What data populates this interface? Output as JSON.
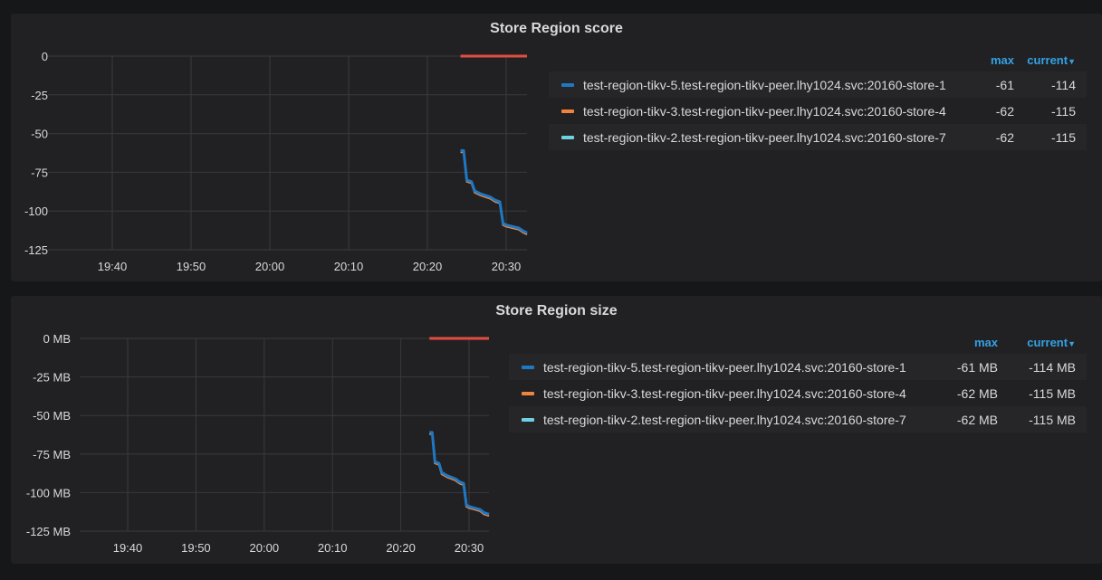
{
  "panels": [
    {
      "title": "Store Region score",
      "legend": {
        "columns": {
          "max": "max",
          "current": "current"
        },
        "sort_icon": "caret-down-icon",
        "items": [
          {
            "name": "test-region-tikv-5.test-region-tikv-peer.lhy1024.svc:20160-store-1",
            "color": "#1f78c1",
            "max": "-61",
            "current": "-114"
          },
          {
            "name": "test-region-tikv-3.test-region-tikv-peer.lhy1024.svc:20160-store-4",
            "color": "#ef843c",
            "max": "-62",
            "current": "-115"
          },
          {
            "name": "test-region-tikv-2.test-region-tikv-peer.lhy1024.svc:20160-store-7",
            "color": "#6ed0e0",
            "max": "-62",
            "current": "-115"
          }
        ]
      }
    },
    {
      "title": "Store Region size",
      "legend": {
        "columns": {
          "max": "max",
          "current": "current"
        },
        "sort_icon": "caret-down-icon",
        "items": [
          {
            "name": "test-region-tikv-5.test-region-tikv-peer.lhy1024.svc:20160-store-1",
            "color": "#1f78c1",
            "max": "-61 MB",
            "current": "-114 MB"
          },
          {
            "name": "test-region-tikv-3.test-region-tikv-peer.lhy1024.svc:20160-store-4",
            "color": "#ef843c",
            "max": "-62 MB",
            "current": "-115 MB"
          },
          {
            "name": "test-region-tikv-2.test-region-tikv-peer.lhy1024.svc:20160-store-7",
            "color": "#6ed0e0",
            "max": "-62 MB",
            "current": "-115 MB"
          }
        ]
      }
    }
  ],
  "chart_data": [
    {
      "type": "line",
      "title": "Store Region score",
      "xlabel": "",
      "ylabel": "",
      "x_ticks": [
        "19:40",
        "19:50",
        "20:00",
        "20:10",
        "20:20",
        "20:30"
      ],
      "y_ticks": [
        "0",
        "-25",
        "-50",
        "-75",
        "-100",
        "-125"
      ],
      "ylim": [
        -125,
        0
      ],
      "xlim_minutes": [
        -6.8,
        33
      ],
      "grid": true,
      "legend_position": "right",
      "threshold": {
        "value": 0,
        "from_minute": 24.2,
        "to_minute": 33,
        "color": "#e24d42"
      },
      "x_minutes": [
        24.2,
        24.6,
        25.0,
        25.6,
        26.0,
        26.8,
        27.4,
        28.0,
        28.6,
        29.2,
        29.6,
        30.0,
        30.8,
        31.6,
        32.2,
        33.0
      ],
      "series": [
        {
          "name": "test-region-tikv-5.test-region-tikv-peer.lhy1024.svc:20160-store-1",
          "color": "#1f78c1",
          "values": [
            -61,
            -61,
            -80,
            -81,
            -87,
            -89,
            -90,
            -91,
            -93,
            -94,
            -108,
            -109,
            -110,
            -111,
            -113,
            -114
          ]
        },
        {
          "name": "test-region-tikv-3.test-region-tikv-peer.lhy1024.svc:20160-store-4",
          "color": "#ef843c",
          "values": [
            -62,
            -62,
            -81,
            -82,
            -88,
            -90,
            -91,
            -92,
            -94,
            -95,
            -109,
            -110,
            -111,
            -112,
            -114,
            -115
          ]
        },
        {
          "name": "test-region-tikv-2.test-region-tikv-peer.lhy1024.svc:20160-store-7",
          "color": "#6ed0e0",
          "values": [
            -62,
            -62,
            -81,
            -82,
            -88,
            -90,
            -91,
            -92,
            -94,
            -95,
            -109,
            -110,
            -111,
            -112,
            -114,
            -115
          ]
        }
      ]
    },
    {
      "type": "line",
      "title": "Store Region size",
      "xlabel": "",
      "ylabel": "",
      "x_ticks": [
        "19:40",
        "19:50",
        "20:00",
        "20:10",
        "20:20",
        "20:30"
      ],
      "y_ticks": [
        "0 MB",
        "-25 MB",
        "-50 MB",
        "-75 MB",
        "-100 MB",
        "-125 MB"
      ],
      "ylim": [
        -125,
        0
      ],
      "xlim_minutes": [
        -7,
        33
      ],
      "grid": true,
      "legend_position": "right",
      "threshold": {
        "value": 0,
        "from_minute": 24.2,
        "to_minute": 33,
        "color": "#e24d42"
      },
      "x_minutes": [
        24.2,
        24.6,
        25.0,
        25.6,
        26.0,
        26.8,
        27.4,
        28.0,
        28.6,
        29.2,
        29.6,
        30.0,
        30.8,
        31.6,
        32.2,
        33.0
      ],
      "series": [
        {
          "name": "test-region-tikv-5.test-region-tikv-peer.lhy1024.svc:20160-store-1",
          "color": "#1f78c1",
          "values": [
            -61,
            -61,
            -80,
            -81,
            -87,
            -89,
            -90,
            -91,
            -93,
            -94,
            -108,
            -109,
            -110,
            -111,
            -113,
            -114
          ]
        },
        {
          "name": "test-region-tikv-3.test-region-tikv-peer.lhy1024.svc:20160-store-4",
          "color": "#ef843c",
          "values": [
            -62,
            -62,
            -81,
            -82,
            -88,
            -90,
            -91,
            -92,
            -94,
            -95,
            -109,
            -110,
            -111,
            -112,
            -114,
            -115
          ]
        },
        {
          "name": "test-region-tikv-2.test-region-tikv-peer.lhy1024.svc:20160-store-7",
          "color": "#6ed0e0",
          "values": [
            -62,
            -62,
            -81,
            -82,
            -88,
            -90,
            -91,
            -92,
            -94,
            -95,
            -109,
            -110,
            -111,
            -112,
            -114,
            -115
          ]
        }
      ]
    }
  ]
}
